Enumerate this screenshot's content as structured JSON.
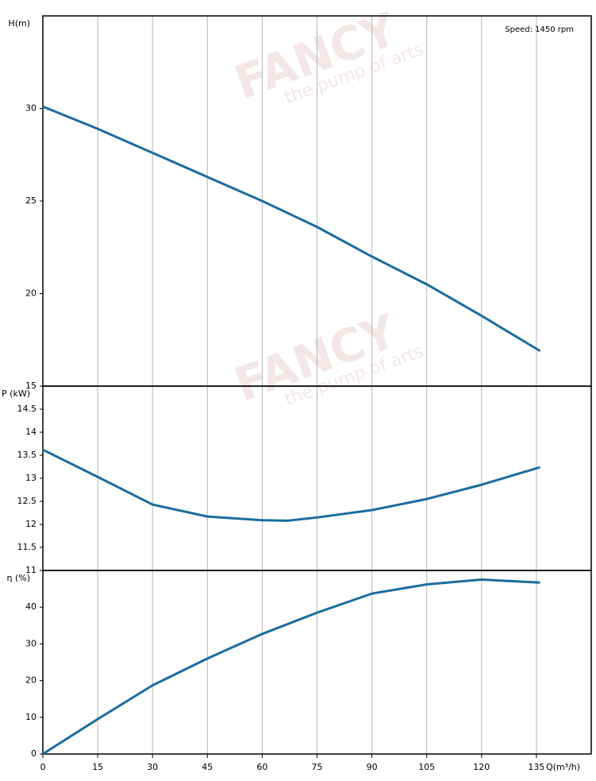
{
  "chart_data": [
    {
      "type": "line",
      "ylabel": "H(m)",
      "annotation": "Speed: 1450 rpm",
      "color": "#1b6d9e",
      "x": [
        0,
        15,
        30,
        45,
        60,
        75,
        90,
        105,
        120,
        136
      ],
      "values": [
        30.1,
        28.9,
        27.6,
        26.3,
        25.0,
        23.6,
        22.0,
        20.5,
        18.8,
        16.9
      ],
      "xlim": [
        0,
        150
      ],
      "xticks": [
        0,
        15,
        30,
        45,
        60,
        75,
        90,
        105,
        120,
        135
      ],
      "ylim": [
        15,
        35
      ],
      "yticks": [
        15,
        20,
        25,
        30
      ],
      "grid": true
    },
    {
      "type": "line",
      "ylabel": "P (kW)",
      "color": "#1b6d9e",
      "x": [
        0,
        15,
        30,
        45,
        60,
        67,
        75,
        90,
        105,
        120,
        136
      ],
      "values": [
        13.62,
        13.03,
        12.43,
        12.17,
        12.09,
        12.08,
        12.15,
        12.31,
        12.55,
        12.86,
        13.24
      ],
      "xlim": [
        0,
        150
      ],
      "xticks": [
        0,
        15,
        30,
        45,
        60,
        75,
        90,
        105,
        120,
        135
      ],
      "ylim": [
        11,
        15
      ],
      "yticks": [
        11,
        11.5,
        12,
        12.5,
        13,
        13.5,
        14,
        14.5
      ],
      "grid": true
    },
    {
      "type": "line",
      "ylabel": "η (%)",
      "xlabel": "Q(m³/h)",
      "color": "#1b6d9e",
      "x": [
        0,
        15,
        30,
        45,
        60,
        75,
        90,
        105,
        120,
        136
      ],
      "values": [
        0,
        9.5,
        18.7,
        26.0,
        32.7,
        38.5,
        43.7,
        46.2,
        47.5,
        46.7
      ],
      "xlim": [
        0,
        150
      ],
      "xticks": [
        0,
        15,
        30,
        45,
        60,
        75,
        90,
        105,
        120,
        135
      ],
      "ylim": [
        0,
        50
      ],
      "yticks": [
        0,
        10,
        20,
        30,
        40
      ],
      "grid": true
    }
  ],
  "watermark": {
    "brand": "FANCY",
    "tagline": "the pump of arts"
  }
}
